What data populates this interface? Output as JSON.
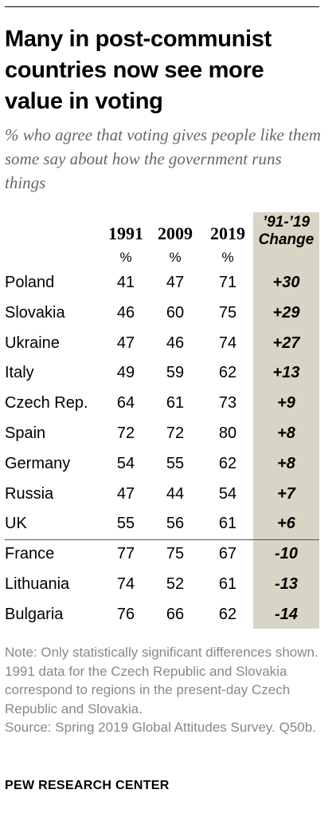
{
  "title": "Many in post-communist countries now see more value in voting",
  "subtitle": "% who agree that voting gives people like them some say about how the government runs things",
  "chart_data": {
    "type": "table",
    "columns": [
      "1991",
      "2009",
      "2019"
    ],
    "unit_labels": [
      "%",
      "%",
      "%"
    ],
    "change_header_line1": "’91-’19",
    "change_header_line2": "Change",
    "rows": [
      {
        "country": "Poland",
        "v1991": "41",
        "v2009": "47",
        "v2019": "71",
        "change": "+30"
      },
      {
        "country": "Slovakia",
        "v1991": "46",
        "v2009": "60",
        "v2019": "75",
        "change": "+29"
      },
      {
        "country": "Ukraine",
        "v1991": "47",
        "v2009": "46",
        "v2019": "74",
        "change": "+27"
      },
      {
        "country": "Italy",
        "v1991": "49",
        "v2009": "59",
        "v2019": "62",
        "change": "+13"
      },
      {
        "country": "Czech Rep.",
        "v1991": "64",
        "v2009": "61",
        "v2019": "73",
        "change": "+9"
      },
      {
        "country": "Spain",
        "v1991": "72",
        "v2009": "72",
        "v2019": "80",
        "change": "+8"
      },
      {
        "country": "Germany",
        "v1991": "54",
        "v2009": "55",
        "v2019": "62",
        "change": "+8"
      },
      {
        "country": "Russia",
        "v1991": "47",
        "v2009": "44",
        "v2019": "54",
        "change": "+7"
      },
      {
        "country": "UK",
        "v1991": "55",
        "v2009": "56",
        "v2019": "61",
        "change": "+6"
      },
      {
        "country": "France",
        "v1991": "77",
        "v2009": "75",
        "v2019": "67",
        "change": "-10"
      },
      {
        "country": "Lithuania",
        "v1991": "74",
        "v2009": "52",
        "v2019": "61",
        "change": "-13"
      },
      {
        "country": "Bulgaria",
        "v1991": "76",
        "v2009": "66",
        "v2019": "62",
        "change": "-14"
      }
    ],
    "change_column_color": "#d9d5c6"
  },
  "note": "Note: Only statistically significant differences shown. 1991 data for the Czech Republic and Slovakia correspond to regions in the present-day Czech Republic and Slovakia.",
  "source": "Source: Spring 2019 Global Attitudes Survey. Q50b.",
  "brand": "PEW RESEARCH CENTER"
}
